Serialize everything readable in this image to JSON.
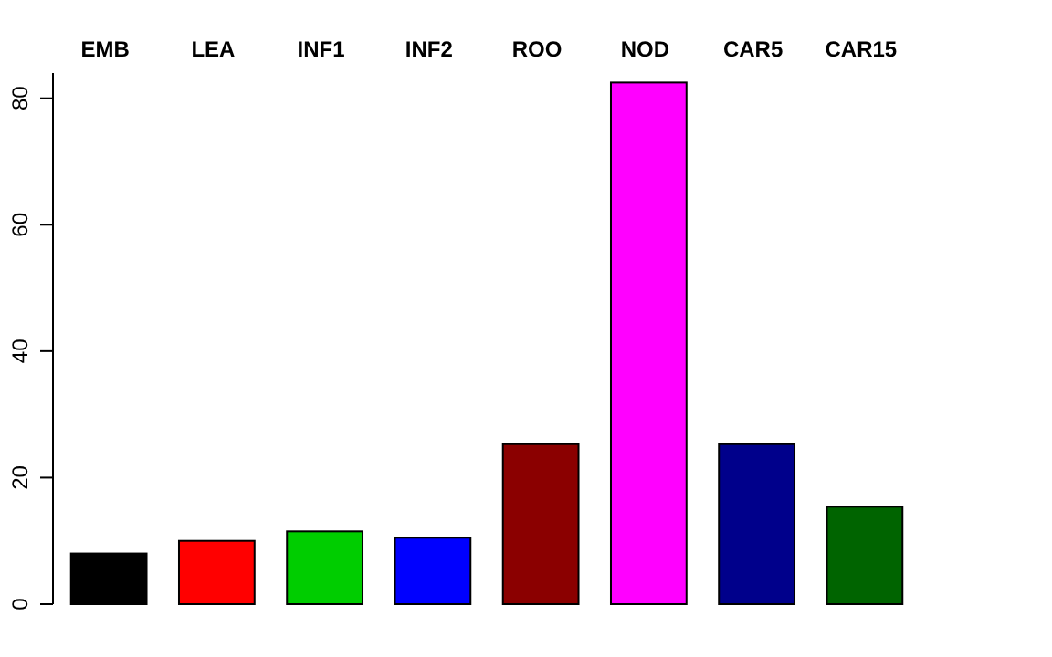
{
  "chart_data": {
    "type": "bar",
    "categories": [
      "EMB",
      "LEA",
      "INF1",
      "INF2",
      "ROO",
      "NOD",
      "CAR5",
      "CAR15"
    ],
    "values": [
      8.0,
      10.0,
      11.5,
      10.5,
      25.3,
      82.5,
      25.3,
      15.4
    ],
    "colors": [
      "#000000",
      "#ff0000",
      "#00cd00",
      "#0000ff",
      "#8b0000",
      "#ff00ff",
      "#00008b",
      "#006400"
    ],
    "ylim": [
      0,
      84
    ],
    "yticks": [
      0,
      20,
      40,
      60,
      80
    ],
    "grid": false
  }
}
